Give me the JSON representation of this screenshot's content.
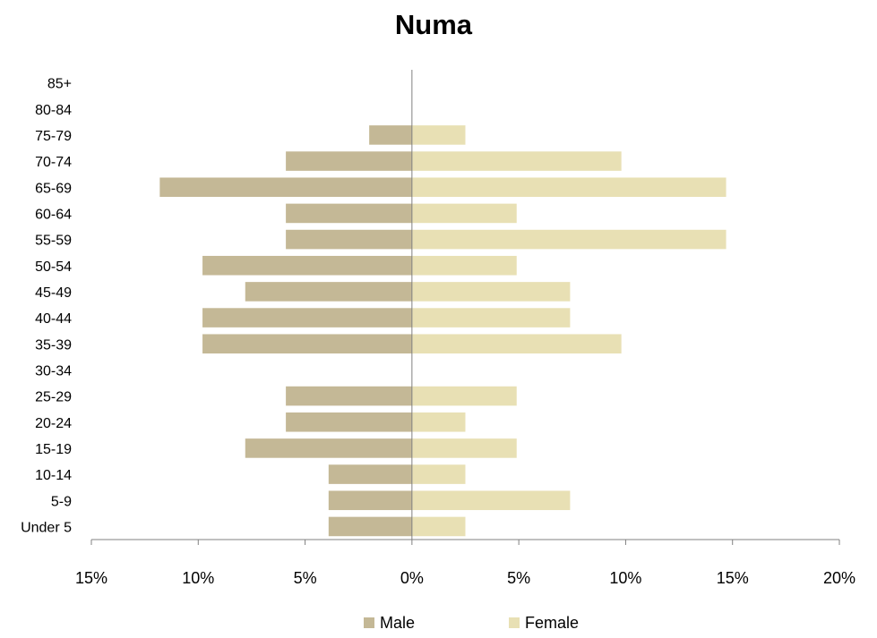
{
  "chart_data": {
    "type": "bar",
    "orientation": "horizontal",
    "title": "Numa",
    "categories": [
      "Under 5",
      "5-9",
      "10-14",
      "15-19",
      "20-24",
      "25-29",
      "30-34",
      "35-39",
      "40-44",
      "45-49",
      "50-54",
      "55-59",
      "60-64",
      "65-69",
      "70-74",
      "75-79",
      "80-84",
      "85+"
    ],
    "series": [
      {
        "name": "Male",
        "color": "#c4b896",
        "values": [
          -3.9,
          -3.9,
          -3.9,
          -7.8,
          -5.9,
          -5.9,
          0,
          -9.8,
          -9.8,
          -7.8,
          -9.8,
          -5.9,
          -5.9,
          -11.8,
          -5.9,
          -2.0,
          0,
          0
        ]
      },
      {
        "name": "Female",
        "color": "#e8e0b4",
        "values": [
          2.5,
          7.4,
          2.5,
          4.9,
          2.5,
          4.9,
          0,
          9.8,
          7.4,
          7.4,
          4.9,
          14.7,
          4.9,
          14.7,
          9.8,
          2.5,
          0,
          0
        ]
      }
    ],
    "xlim": [
      -15,
      20
    ],
    "xticks": [
      -15,
      -10,
      -5,
      0,
      5,
      10,
      15,
      20
    ],
    "xtick_labels": [
      "15%",
      "10%",
      "5%",
      "0%",
      "5%",
      "10%",
      "15%",
      "20%"
    ],
    "grid": false,
    "legend_position": "bottom"
  }
}
